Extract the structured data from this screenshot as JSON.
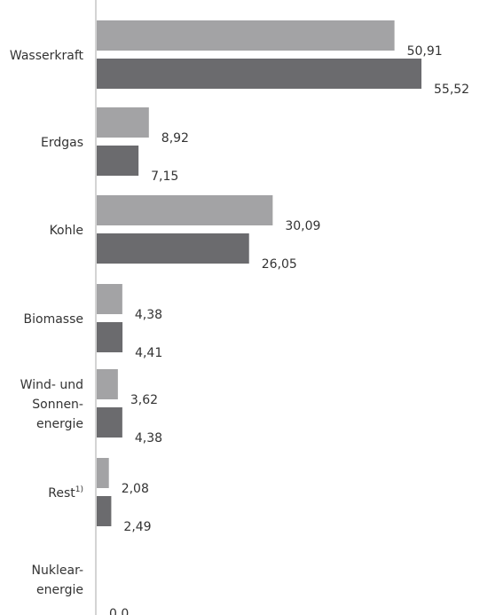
{
  "chart_data": {
    "type": "bar",
    "orientation": "horizontal",
    "categories": [
      "Wasserkraft",
      "Erdgas",
      "Kohle",
      "Biomasse",
      "Wind- und Sonnen-energie",
      "Rest",
      "Nuklear-energie"
    ],
    "category_lines": [
      [
        "Wasserkraft"
      ],
      [
        "Erdgas"
      ],
      [
        "Kohle"
      ],
      [
        "Biomasse"
      ],
      [
        "Wind- und",
        "Sonnen-",
        "energie"
      ],
      [
        "Rest"
      ],
      [
        "Nuklear-",
        "energie"
      ]
    ],
    "category_footnotes": [
      "",
      "",
      "",
      "",
      "",
      "1)",
      ""
    ],
    "series": [
      {
        "values": [
          50.91,
          8.92,
          30.09,
          4.38,
          3.62,
          2.08,
          null
        ],
        "color": "#a3a3a5"
      },
      {
        "values": [
          55.52,
          7.15,
          26.05,
          4.41,
          4.38,
          2.49,
          0.0
        ],
        "color": "#6b6b6e"
      }
    ],
    "value_labels": [
      [
        "50,91",
        "8,92",
        "30,09",
        "4,38",
        "3,62",
        "2,08",
        ""
      ],
      [
        "55,52",
        "7,15",
        "26,05",
        "4,41",
        "4,38",
        "2,49",
        "0,0"
      ]
    ],
    "xlim": [
      0,
      55.52
    ],
    "grid": false,
    "axis_color": "#a8a8a8"
  }
}
